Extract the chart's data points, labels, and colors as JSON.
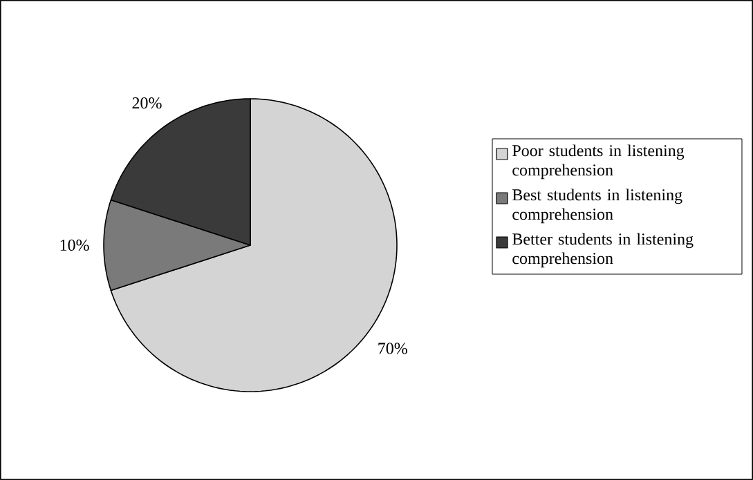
{
  "chart_data": {
    "type": "pie",
    "categories": [
      "Poor students in listening comprehension",
      "Best students in listening comprehension",
      "Better students in listening comprehension"
    ],
    "values": [
      70,
      10,
      20
    ],
    "colors": [
      "#d4d4d4",
      "#7a7a7a",
      "#3a3a3a"
    ],
    "value_labels": [
      "70%",
      "10%",
      "20%"
    ],
    "legend": "right"
  }
}
